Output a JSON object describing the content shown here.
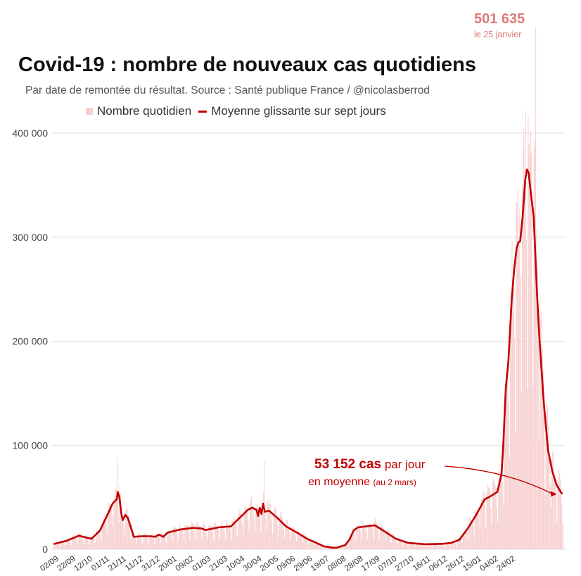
{
  "title": "Covid-19 : nombre de nouveaux cas quotidiens",
  "subtitle": "Par date de remontée du résultat. Source : Santé publique France / @nicolasberrod",
  "legend": {
    "daily": "Nombre quotidien",
    "avg": "Moyenne glissante sur sept jours"
  },
  "peak": {
    "value": "501 635",
    "date": "le 25 janvier"
  },
  "annotation": {
    "value": "53 152 cas",
    "line1_rest": " par jour",
    "line2": "en moyenne ",
    "note": "(au 2 mars)"
  },
  "colors": {
    "bar": "#f7cfcf",
    "line": "#c00000",
    "grid": "#dddddd",
    "peak_label": "#e07a7a"
  },
  "chart_data": {
    "type": "bar",
    "title": "Covid-19 : nombre de nouveaux cas quotidiens",
    "ylim": [
      0,
      400000
    ],
    "y_ticks": [
      {
        "value": 0,
        "label": "0"
      },
      {
        "value": 100000,
        "label": "100 000"
      },
      {
        "value": 200000,
        "label": "200 000"
      },
      {
        "value": 300000,
        "label": "300 000"
      },
      {
        "value": 400000,
        "label": "400 000"
      }
    ],
    "x_ticks": [
      "02/09",
      "22/09",
      "12/10",
      "01/11",
      "21/11",
      "11/12",
      "31/12",
      "20/01",
      "09/02",
      "01/03",
      "21/03",
      "10/04",
      "30/04",
      "20/05",
      "09/06",
      "29/06",
      "19/07",
      "08/08",
      "28/08",
      "17/09",
      "07/10",
      "27/10",
      "16/11",
      "06/12",
      "26/12",
      "15/01",
      "04/02",
      "24/02"
    ],
    "tick_spacing_days": 20,
    "series": [
      {
        "name": "Moyenne glissante sur sept jours",
        "type": "line",
        "points": [
          [
            0,
            5000
          ],
          [
            15,
            8000
          ],
          [
            30,
            13000
          ],
          [
            45,
            10000
          ],
          [
            55,
            18000
          ],
          [
            65,
            35000
          ],
          [
            70,
            44000
          ],
          [
            75,
            48000
          ],
          [
            76,
            55000
          ],
          [
            78,
            50000
          ],
          [
            80,
            35000
          ],
          [
            82,
            28000
          ],
          [
            85,
            33000
          ],
          [
            88,
            30000
          ],
          [
            95,
            12000
          ],
          [
            105,
            12500
          ],
          [
            115,
            12500
          ],
          [
            120,
            12000
          ],
          [
            125,
            14000
          ],
          [
            130,
            12000
          ],
          [
            135,
            16000
          ],
          [
            150,
            19000
          ],
          [
            165,
            20500
          ],
          [
            175,
            20000
          ],
          [
            180,
            18500
          ],
          [
            195,
            21000
          ],
          [
            210,
            22000
          ],
          [
            220,
            30000
          ],
          [
            230,
            38000
          ],
          [
            235,
            40000
          ],
          [
            240,
            38000
          ],
          [
            242,
            32000
          ],
          [
            244,
            40000
          ],
          [
            246,
            34000
          ],
          [
            248,
            44000
          ],
          [
            250,
            36000
          ],
          [
            255,
            37000
          ],
          [
            265,
            30000
          ],
          [
            275,
            22000
          ],
          [
            290,
            15000
          ],
          [
            300,
            10000
          ],
          [
            310,
            6500
          ],
          [
            320,
            2800
          ],
          [
            330,
            1500
          ],
          [
            335,
            1500
          ],
          [
            345,
            4000
          ],
          [
            350,
            9000
          ],
          [
            355,
            18000
          ],
          [
            360,
            21000
          ],
          [
            370,
            22000
          ],
          [
            380,
            23000
          ],
          [
            390,
            18000
          ],
          [
            405,
            10000
          ],
          [
            420,
            6000
          ],
          [
            440,
            4800
          ],
          [
            460,
            5200
          ],
          [
            470,
            6000
          ],
          [
            480,
            9000
          ],
          [
            490,
            20000
          ],
          [
            500,
            33000
          ],
          [
            510,
            48000
          ],
          [
            515,
            50000
          ],
          [
            525,
            55000
          ],
          [
            528,
            65000
          ],
          [
            530,
            73000
          ],
          [
            532,
            100000
          ],
          [
            535,
            155000
          ],
          [
            538,
            180000
          ],
          [
            542,
            240000
          ],
          [
            545,
            270000
          ],
          [
            548,
            290000
          ],
          [
            550,
            295000
          ],
          [
            552,
            296000
          ],
          [
            555,
            320000
          ],
          [
            558,
            355000
          ],
          [
            560,
            365000
          ],
          [
            562,
            362000
          ],
          [
            565,
            340000
          ],
          [
            568,
            320000
          ],
          [
            572,
            245000
          ],
          [
            575,
            200000
          ],
          [
            580,
            140000
          ],
          [
            585,
            95000
          ],
          [
            590,
            75000
          ],
          [
            595,
            62000
          ],
          [
            600,
            55000
          ],
          [
            602,
            53152
          ]
        ]
      }
    ],
    "daily_bar_days": 603,
    "annotations": [
      "501 635 le 25 janvier",
      "53 152 cas par jour en moyenne (au 2 mars)"
    ]
  }
}
